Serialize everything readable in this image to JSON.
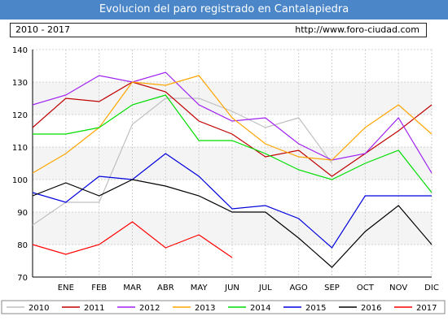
{
  "header": {
    "title": "Evolucion del paro registrado en Cantalapiedra",
    "period": "2010 - 2017",
    "url": "http://www.foro-ciudad.com"
  },
  "chart_data": {
    "type": "line",
    "title": "Evolucion del paro registrado en Cantalapiedra",
    "categories": [
      "",
      "ENE",
      "FEB",
      "MAR",
      "ABR",
      "MAY",
      "JUN",
      "JUL",
      "AGO",
      "SEP",
      "OCT",
      "NOV",
      "DIC"
    ],
    "y_ticks": [
      70,
      80,
      90,
      100,
      110,
      120,
      130,
      140
    ],
    "ylim": [
      70,
      140
    ],
    "grid": true,
    "legend_position": "bottom",
    "series": [
      {
        "name": "2010",
        "color": "#c0c0c0",
        "values": [
          86,
          93,
          93,
          117,
          125,
          125,
          121,
          116,
          119,
          105,
          null,
          null,
          null
        ]
      },
      {
        "name": "2011",
        "color": "#c00000",
        "values": [
          116,
          125,
          124,
          130,
          127,
          118,
          114,
          107,
          109,
          101,
          108,
          115,
          123
        ]
      },
      {
        "name": "2012",
        "color": "#a020f0",
        "values": [
          123,
          126,
          132,
          130,
          133,
          123,
          118,
          119,
          111,
          106,
          108,
          119,
          102
        ]
      },
      {
        "name": "2013",
        "color": "#ffa500",
        "values": [
          102,
          108,
          116,
          130,
          129,
          132,
          119,
          111,
          107,
          106,
          116,
          123,
          114
        ]
      },
      {
        "name": "2014",
        "color": "#00dd00",
        "values": [
          114,
          114,
          116,
          123,
          126,
          112,
          112,
          108,
          103,
          100,
          105,
          109,
          96
        ]
      },
      {
        "name": "2015",
        "color": "#0000dd",
        "values": [
          96,
          93,
          101,
          100,
          108,
          101,
          91,
          92,
          88,
          79,
          95,
          95,
          95
        ]
      },
      {
        "name": "2016",
        "color": "#000000",
        "values": [
          95,
          99,
          95,
          100,
          98,
          95,
          90,
          90,
          82,
          73,
          84,
          92,
          80
        ]
      },
      {
        "name": "2017",
        "color": "#ff0000",
        "values": [
          80,
          77,
          80,
          87,
          79,
          83,
          76,
          null,
          null,
          null,
          null,
          null,
          null
        ]
      }
    ]
  }
}
